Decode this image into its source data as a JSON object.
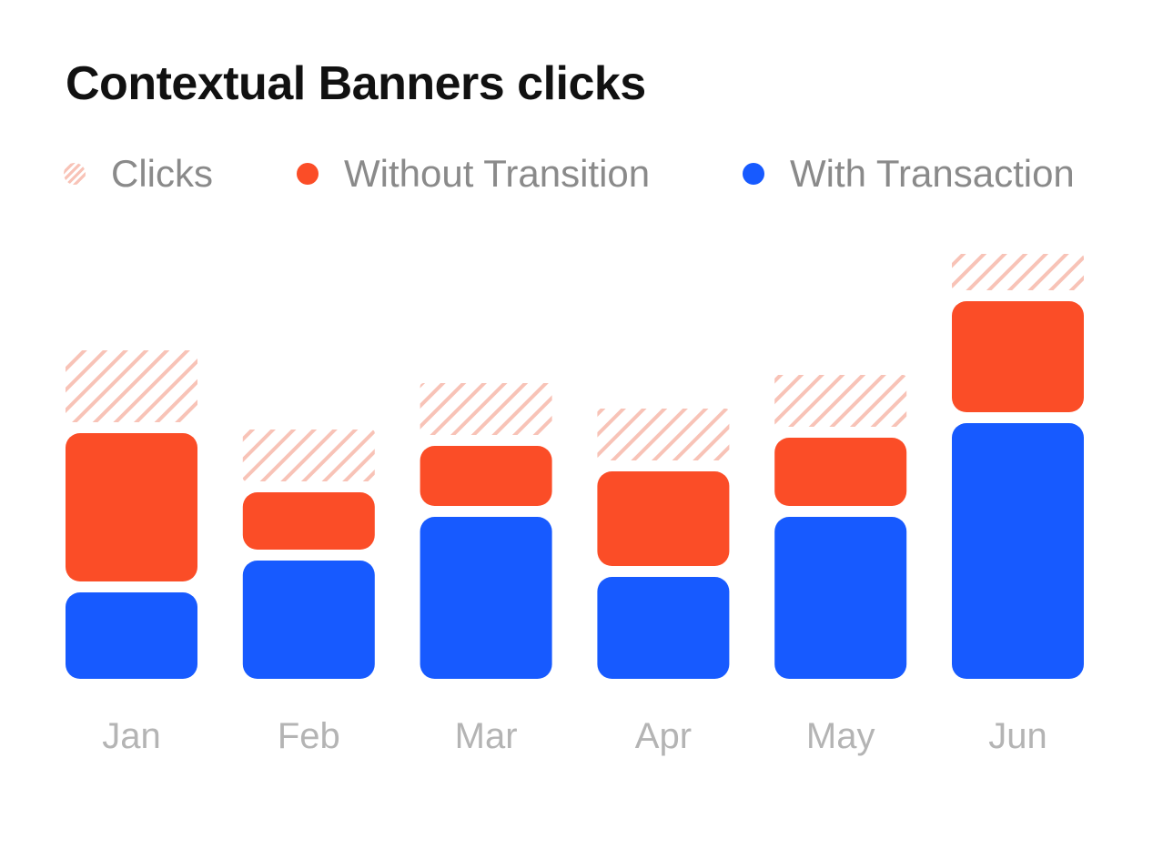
{
  "chart_data": {
    "type": "bar",
    "stacked": true,
    "title": "Contextual Banners clicks",
    "categories": [
      "Jan",
      "Feb",
      "Mar",
      "Apr",
      "May",
      "Jun"
    ],
    "series": [
      {
        "name": "With Transaction",
        "values": [
          95,
          130,
          178,
          112,
          178,
          281
        ],
        "color": "#175AFF"
      },
      {
        "name": "Without Transition",
        "values": [
          163,
          63,
          66,
          104,
          75,
          122
        ],
        "color": "#FB4D27"
      },
      {
        "name": "Clicks",
        "values": [
          79,
          57,
          57,
          57,
          57,
          40
        ],
        "color": "#F8C3B7",
        "pattern": "hatched"
      }
    ],
    "ylim": [
      0,
      470
    ],
    "grid": false,
    "legend_position": "top"
  },
  "legend": [
    {
      "label": "Clicks",
      "swatch": "hatched",
      "color": "#F8C3B7"
    },
    {
      "label": "Without Transition",
      "swatch": "dot",
      "color": "#FB4D27"
    },
    {
      "label": "With Transaction",
      "swatch": "dot",
      "color": "#175AFF"
    }
  ]
}
